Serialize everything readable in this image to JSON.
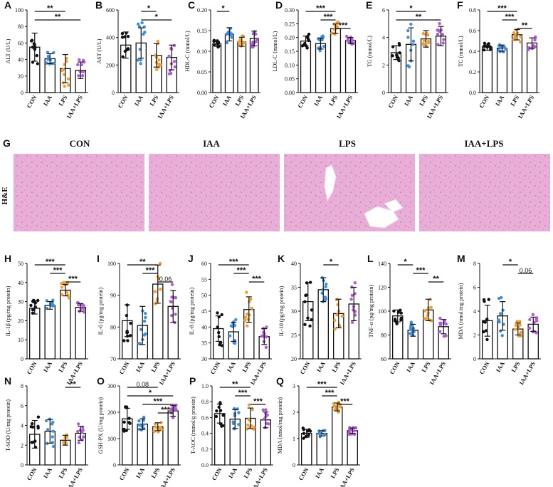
{
  "colors": {
    "CON": "#111111",
    "IAA": "#3d8fdc",
    "LPS": "#f0a030",
    "IAA+LPS": "#b05cd6",
    "tissue": "#e6a9d6"
  },
  "groups": [
    "CON",
    "IAA",
    "LPS",
    "IAA+LPS"
  ],
  "histology": {
    "letter": "G",
    "row_label": "H&E",
    "titles": [
      "CON",
      "IAA",
      "LPS",
      "IAA+LPS"
    ]
  },
  "chart_data": [
    {
      "id": "A",
      "type": "bar",
      "ylabel": "ALT (U/L)",
      "ylim": [
        0,
        100
      ],
      "yticks": [
        0,
        20,
        40,
        60,
        80,
        100
      ],
      "categories": [
        "CON",
        "IAA",
        "LPS",
        "IAA+LPS"
      ],
      "values": [
        55,
        41,
        29,
        27
      ],
      "errors": [
        17,
        6,
        17,
        10
      ],
      "brackets": [
        {
          "from": 0,
          "to": 2,
          "label": "**"
        },
        {
          "from": 0,
          "to": 3,
          "label": "**"
        }
      ]
    },
    {
      "id": "B",
      "type": "bar",
      "ylabel": "AST (U/L)",
      "ylim": [
        0,
        600
      ],
      "yticks": [
        0,
        200,
        400,
        600
      ],
      "categories": [
        "CON",
        "IAA",
        "LPS",
        "IAA+LPS"
      ],
      "values": [
        345,
        360,
        270,
        255
      ],
      "errors": [
        95,
        110,
        85,
        90
      ],
      "brackets": [
        {
          "from": 1,
          "to": 2,
          "label": "*"
        },
        {
          "from": 1,
          "to": 3,
          "label": "*"
        }
      ]
    },
    {
      "id": "C",
      "type": "bar",
      "ylabel": "HDL-C (mmol/L)",
      "ylim": [
        0,
        0.2
      ],
      "yticks": [
        0.0,
        0.05,
        0.1,
        0.15,
        0.2
      ],
      "categories": [
        "CON",
        "IAA",
        "LPS",
        "IAA+LPS"
      ],
      "values": [
        0.118,
        0.141,
        0.123,
        0.131
      ],
      "errors": [
        0.006,
        0.016,
        0.011,
        0.018
      ],
      "brackets": [
        {
          "from": 0,
          "to": 1,
          "label": "*"
        }
      ]
    },
    {
      "id": "D",
      "type": "bar",
      "ylabel": "LDL-C (mmol/L)",
      "ylim": [
        0,
        0.3
      ],
      "yticks": [
        0.0,
        0.05,
        0.1,
        0.15,
        0.2,
        0.25,
        0.3
      ],
      "categories": [
        "CON",
        "IAA",
        "LPS",
        "IAA+LPS"
      ],
      "values": [
        0.187,
        0.178,
        0.232,
        0.189
      ],
      "errors": [
        0.018,
        0.02,
        0.017,
        0.011
      ],
      "brackets": [
        {
          "from": 0,
          "to": 2,
          "label": "***"
        },
        {
          "from": 1,
          "to": 2,
          "label": "***"
        },
        {
          "from": 2,
          "to": 3,
          "label": "***"
        }
      ]
    },
    {
      "id": "E",
      "type": "bar",
      "ylabel": "TG (mmol/L)",
      "ylim": [
        0,
        6
      ],
      "yticks": [
        0,
        2,
        4,
        6
      ],
      "categories": [
        "CON",
        "IAA",
        "LPS",
        "IAA+LPS"
      ],
      "values": [
        2.9,
        3.5,
        3.9,
        4.1
      ],
      "errors": [
        0.5,
        1.2,
        0.6,
        0.7
      ],
      "brackets": [
        {
          "from": 0,
          "to": 2,
          "label": "*"
        },
        {
          "from": 0,
          "to": 3,
          "label": "**"
        }
      ]
    },
    {
      "id": "F",
      "type": "bar",
      "ylabel": "TC (mmol/L)",
      "ylim": [
        0,
        0.8
      ],
      "yticks": [
        0.0,
        0.2,
        0.4,
        0.6,
        0.8
      ],
      "categories": [
        "CON",
        "IAA",
        "LPS",
        "IAA+LPS"
      ],
      "values": [
        0.44,
        0.43,
        0.56,
        0.48
      ],
      "errors": [
        0.03,
        0.03,
        0.05,
        0.05
      ],
      "brackets": [
        {
          "from": 0,
          "to": 2,
          "label": "***"
        },
        {
          "from": 1,
          "to": 2,
          "label": "***"
        },
        {
          "from": 2,
          "to": 3,
          "label": "**"
        }
      ]
    },
    {
      "id": "H",
      "type": "bar",
      "ylabel": "IL-1β (pg/mg protein)",
      "ylim": [
        0,
        50
      ],
      "yticks": [
        0,
        10,
        20,
        30,
        40,
        50
      ],
      "categories": [
        "CON",
        "IAA",
        "LPS",
        "IAA+LPS"
      ],
      "values": [
        26.5,
        28,
        36,
        27
      ],
      "errors": [
        3,
        2,
        3,
        2
      ],
      "brackets": [
        {
          "from": 0,
          "to": 2,
          "label": "***"
        },
        {
          "from": 1,
          "to": 2,
          "label": "***"
        },
        {
          "from": 2,
          "to": 3,
          "label": "***"
        }
      ]
    },
    {
      "id": "I",
      "type": "bar",
      "ylabel": "IL-6 (pg/mg protein)",
      "ylim": [
        70,
        100
      ],
      "yticks": [
        70,
        80,
        90,
        100
      ],
      "categories": [
        "CON",
        "IAA",
        "LPS",
        "IAA+LPS"
      ],
      "values": [
        82,
        80.5,
        93.5,
        86.5
      ],
      "errors": [
        5,
        6,
        6,
        5
      ],
      "brackets": [
        {
          "from": 0,
          "to": 2,
          "label": "**"
        },
        {
          "from": 1,
          "to": 2,
          "label": "***"
        },
        {
          "from": 2,
          "to": 3,
          "label": "0.06"
        }
      ]
    },
    {
      "id": "J",
      "type": "bar",
      "ylabel": "IL-8 (pg/mg protein)",
      "ylim": [
        30,
        60
      ],
      "yticks": [
        30,
        35,
        40,
        45,
        50,
        55,
        60
      ],
      "categories": [
        "CON",
        "IAA",
        "LPS",
        "IAA+LPS"
      ],
      "values": [
        39.5,
        38.5,
        45.5,
        37
      ],
      "errors": [
        4,
        3,
        4,
        2.5
      ],
      "brackets": [
        {
          "from": 0,
          "to": 2,
          "label": "***"
        },
        {
          "from": 1,
          "to": 2,
          "label": "***"
        },
        {
          "from": 2,
          "to": 3,
          "label": "***"
        }
      ]
    },
    {
      "id": "K",
      "type": "bar",
      "ylabel": "IL-10 (pg/mg protein)",
      "ylim": [
        20,
        40
      ],
      "yticks": [
        20,
        25,
        30,
        35,
        40
      ],
      "categories": [
        "CON",
        "IAA",
        "LPS",
        "IAA+LPS"
      ],
      "values": [
        32,
        34.5,
        29.5,
        31.5
      ],
      "errors": [
        4,
        2.5,
        3,
        3.5
      ],
      "brackets": [
        {
          "from": 1,
          "to": 2,
          "label": "*"
        }
      ]
    },
    {
      "id": "L",
      "type": "bar",
      "ylabel": "TNF-α (pg/mg protein)",
      "ylim": [
        60,
        140
      ],
      "yticks": [
        60,
        80,
        100,
        120,
        140
      ],
      "categories": [
        "CON",
        "IAA",
        "LPS",
        "IAA+LPS"
      ],
      "values": [
        96,
        84,
        101,
        87
      ],
      "errors": [
        5,
        5,
        9,
        6
      ],
      "brackets": [
        {
          "from": 0,
          "to": 1,
          "label": "*"
        },
        {
          "from": 1,
          "to": 2,
          "label": "***"
        },
        {
          "from": 2,
          "to": 3,
          "label": "**"
        }
      ]
    },
    {
      "id": "M",
      "type": "bar",
      "ylabel": "MDA (nmol/mg protein)",
      "ylim": [
        0,
        8
      ],
      "yticks": [
        0,
        2,
        4,
        6,
        8
      ],
      "categories": [
        "CON",
        "IAA",
        "LPS",
        "IAA+LPS"
      ],
      "values": [
        3.2,
        3.6,
        2.5,
        2.9
      ],
      "errors": [
        1.3,
        1.2,
        0.5,
        0.6
      ],
      "brackets": [
        {
          "from": 1,
          "to": 2,
          "label": "*"
        },
        {
          "from": 2,
          "to": 3,
          "label": "0.06"
        }
      ]
    },
    {
      "id": "N",
      "type": "bar",
      "ylabel": "T-SOD (U/mg protein)",
      "ylim": [
        0,
        8
      ],
      "yticks": [
        0,
        2,
        4,
        6,
        8
      ],
      "categories": [
        "CON",
        "IAA",
        "LPS",
        "IAA+LPS"
      ],
      "values": [
        3.1,
        3.4,
        2.5,
        3.2
      ],
      "errors": [
        1.4,
        1.2,
        0.5,
        0.7
      ],
      "brackets": [
        {
          "from": 2,
          "to": 3,
          "label": "**"
        }
      ]
    },
    {
      "id": "O",
      "type": "bar",
      "ylabel": "GSH-PX (U/mg protein)",
      "ylim": [
        0,
        300
      ],
      "yticks": [
        0,
        100,
        200,
        300
      ],
      "categories": [
        "CON",
        "IAA",
        "LPS",
        "IAA+LPS"
      ],
      "values": [
        175,
        155,
        145,
        205
      ],
      "errors": [
        40,
        20,
        15,
        20
      ],
      "brackets": [
        {
          "from": 0,
          "to": 2,
          "label": "0.08"
        },
        {
          "from": 0,
          "to": 3,
          "label": "*"
        },
        {
          "from": 1,
          "to": 3,
          "label": "***"
        },
        {
          "from": 2,
          "to": 3,
          "label": "***"
        }
      ]
    },
    {
      "id": "P",
      "type": "bar",
      "ylabel": "T-AOC (mmol/g protein)",
      "ylim": [
        0,
        1.0
      ],
      "yticks": [
        0.0,
        0.2,
        0.4,
        0.6,
        0.8,
        1.0
      ],
      "categories": [
        "CON",
        "IAA",
        "LPS",
        "IAA+LPS"
      ],
      "values": [
        0.65,
        0.58,
        0.59,
        0.57
      ],
      "errors": [
        0.12,
        0.12,
        0.13,
        0.1
      ],
      "brackets": [
        {
          "from": 0,
          "to": 2,
          "label": "**"
        },
        {
          "from": 1,
          "to": 2,
          "label": "***"
        },
        {
          "from": 2,
          "to": 3,
          "label": "***"
        }
      ]
    },
    {
      "id": "Q",
      "type": "bar",
      "ylabel": "MDA (nmol/mg protein)",
      "ylim": [
        0,
        3
      ],
      "yticks": [
        0,
        1,
        2,
        3
      ],
      "categories": [
        "CON",
        "IAA",
        "LPS",
        "IAA+LPS"
      ],
      "values": [
        1.2,
        1.2,
        2.2,
        1.3
      ],
      "errors": [
        0.15,
        0.1,
        0.15,
        0.1
      ],
      "brackets": [
        {
          "from": 0,
          "to": 2,
          "label": "***"
        },
        {
          "from": 1,
          "to": 2,
          "label": "***"
        },
        {
          "from": 2,
          "to": 3,
          "label": "***"
        }
      ]
    }
  ]
}
